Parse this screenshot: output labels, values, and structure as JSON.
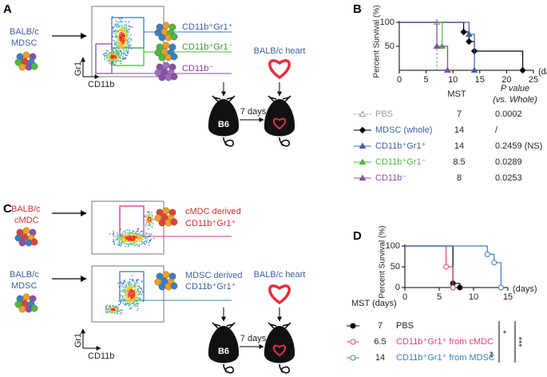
{
  "panel_a": {
    "letter": "A",
    "donor": [
      "BALB/c",
      "MDSC"
    ],
    "gates": [
      "CD11b⁺Gr1⁺",
      "CD11b⁺Gr1⁻",
      "CD11b⁻"
    ],
    "y_axis": "Gr1",
    "x_axis": "CD11b",
    "heart": "BALB/c heart",
    "days": "7 days",
    "recipient": "B6"
  },
  "panel_b": {
    "letter": "B"
  },
  "panel_c": {
    "letter": "C",
    "donor_1": [
      "BALB/c",
      "cMDC"
    ],
    "gate_1": [
      "cMDC derived",
      "CD11b⁺Gr1⁺"
    ],
    "donor_2": [
      "BALB/c",
      "MDSC"
    ],
    "gate_2": [
      "MDSC derived",
      "CD11b⁺Gr1⁺"
    ],
    "y_axis": "Gr1",
    "x_axis": "CD11b",
    "heart": "BALB/c heart",
    "days": "7 days",
    "recipient": "B6"
  },
  "panel_d": {
    "letter": "D",
    "significance": [
      "*",
      "**",
      "***"
    ]
  },
  "chart_data": [
    {
      "type": "survival",
      "y_label": "Percent Survival (%)",
      "x_label": "(days)",
      "xlim": [
        0,
        25
      ],
      "xticks": [
        0,
        5,
        10,
        15,
        20,
        25
      ],
      "ylim": [
        0,
        100
      ],
      "yticks": [
        50,
        100
      ],
      "table_headers": [
        "MST",
        "P value",
        "(vs. Whole)"
      ],
      "series": [
        {
          "name": "PBS",
          "color": "#999999",
          "dashed": true,
          "marker": "triangle",
          "open": true,
          "x": [
            0,
            7,
            7
          ],
          "values": [
            100,
            100,
            0
          ],
          "mst": 7,
          "p_value": "0.0002"
        },
        {
          "name": "MDSC (whole)",
          "color": "#000000",
          "marker": "diamond",
          "x": [
            0,
            12,
            13,
            14,
            23
          ],
          "values": [
            100,
            80,
            60,
            40,
            0
          ],
          "mst": 14,
          "p_value": "/"
        },
        {
          "name": "CD11b⁺Gr1⁺",
          "color": "#3b5fa8",
          "marker": "triangle",
          "x": [
            0,
            13,
            14
          ],
          "values": [
            100,
            75,
            0
          ],
          "mst": 14,
          "p_value": "0.2459 (NS)"
        },
        {
          "name": "CD11b⁺Gr1⁻",
          "color": "#4cbb3c",
          "marker": "triangle",
          "x": [
            0,
            8,
            9
          ],
          "values": [
            100,
            50,
            0
          ],
          "mst": 8.5,
          "p_value": "0.0289"
        },
        {
          "name": "CD11b⁻",
          "color": "#8a4fa8",
          "marker": "triangle",
          "x": [
            0,
            7,
            9
          ],
          "values": [
            100,
            50,
            0
          ],
          "mst": 8,
          "p_value": "0.0253"
        }
      ]
    },
    {
      "type": "survival",
      "y_label": "Percent Survival (%)",
      "x_label": "(days)",
      "xlim": [
        0,
        15
      ],
      "xticks": [
        0,
        5,
        10,
        15
      ],
      "ylim": [
        0,
        100
      ],
      "yticks": [
        0,
        50,
        100
      ],
      "table_headers": [
        "MST (days)"
      ],
      "series": [
        {
          "name": "PBS",
          "color": "#000000",
          "marker": "circle",
          "x": [
            0,
            7,
            8
          ],
          "values": [
            100,
            10,
            0
          ],
          "mst": 7
        },
        {
          "name": "CD11b⁺Gr1⁺ from cMDC",
          "color": "#e0407a",
          "marker": "circle",
          "open": true,
          "x": [
            0,
            6,
            7
          ],
          "values": [
            100,
            50,
            0
          ],
          "mst": 6.5
        },
        {
          "name": "CD11b⁺Gr1⁺ from MDSC",
          "color": "#3a7fc0",
          "marker": "circle",
          "open": true,
          "x": [
            0,
            12,
            13,
            14
          ],
          "values": [
            100,
            80,
            60,
            0
          ],
          "mst": 14
        }
      ]
    }
  ]
}
